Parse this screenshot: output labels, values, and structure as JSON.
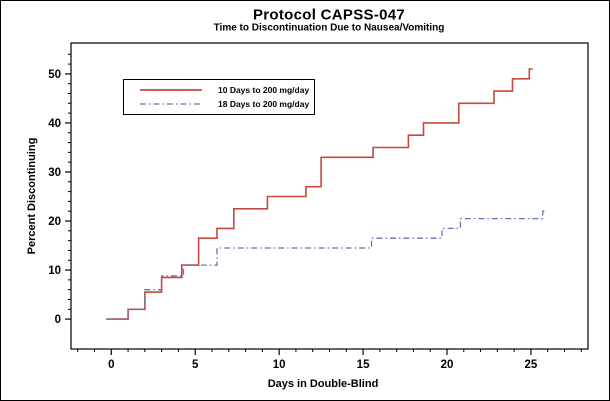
{
  "figure": {
    "background_color": "#ffffff",
    "frame_color": "#000000"
  },
  "chart_data": {
    "type": "line",
    "step": true,
    "title": "Protocol CAPSS-047",
    "subtitle": "Time to Discontinuation Due to Nausea/Vomiting",
    "xlabel": "Days in Double-Blind",
    "ylabel": "Percent Discontinuing",
    "x_ticks": [
      0,
      5,
      10,
      15,
      20,
      25
    ],
    "y_ticks": [
      0,
      10,
      20,
      30,
      40,
      50
    ],
    "x_minor_step": 1,
    "y_minor_step": 2,
    "xlim": [
      -2.4,
      28.4
    ],
    "ylim": [
      -6.1,
      56.3
    ],
    "grid": false,
    "legend_position": "upper-left-inside",
    "series": [
      {
        "name": "10 Days to 200 mg/day",
        "color": "#c9473c",
        "style": "solid",
        "points": [
          [
            -0.3,
            0
          ],
          [
            1,
            2
          ],
          [
            2,
            5.5
          ],
          [
            3,
            8.5
          ],
          [
            4.2,
            11
          ],
          [
            5.2,
            16.5
          ],
          [
            6.3,
            18.5
          ],
          [
            7.3,
            22.5
          ],
          [
            9.3,
            25
          ],
          [
            11.6,
            27
          ],
          [
            12.5,
            33
          ],
          [
            15.6,
            35
          ],
          [
            17.7,
            37.5
          ],
          [
            18.6,
            40
          ],
          [
            20.7,
            44
          ],
          [
            22.8,
            46.5
          ],
          [
            23.9,
            49
          ],
          [
            24.9,
            51
          ]
        ],
        "end_x": 25.1
      },
      {
        "name": "18 Days to 200 mg/day",
        "color": "#6575b2",
        "style": "dash-dot",
        "points": [
          [
            -0.3,
            0
          ],
          [
            1,
            2
          ],
          [
            2,
            6
          ],
          [
            3,
            8.8
          ],
          [
            4.3,
            11
          ],
          [
            6.3,
            14.5
          ],
          [
            15.5,
            16.5
          ],
          [
            19.7,
            18.5
          ],
          [
            20.8,
            20.5
          ],
          [
            25.7,
            22
          ]
        ],
        "end_x": 25.9
      }
    ]
  }
}
